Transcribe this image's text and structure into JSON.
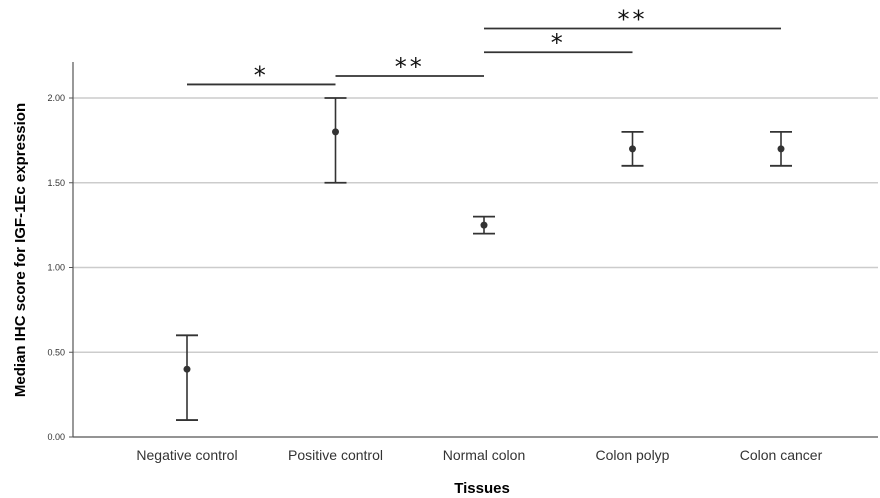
{
  "chart_data": {
    "type": "errorbar",
    "xlabel": "Tissues",
    "ylabel": "Median IHC score for IGF-1Ec expression",
    "ylim": [
      0,
      2.2
    ],
    "yticks": [
      0.0,
      0.5,
      1.0,
      1.5,
      2.0
    ],
    "ytick_labels": [
      "0.00",
      "0.50",
      "1.00",
      "1.50",
      "2.00"
    ],
    "grid": true,
    "categories": [
      "Negative control",
      "Positive control",
      "Normal colon",
      "Colon polyp",
      "Colon cancer"
    ],
    "points": [
      {
        "category": "Negative control",
        "median": 0.4,
        "lower": 0.1,
        "upper": 0.6
      },
      {
        "category": "Positive control",
        "median": 1.8,
        "lower": 1.5,
        "upper": 2.0
      },
      {
        "category": "Normal colon",
        "median": 1.25,
        "lower": 1.2,
        "upper": 1.3
      },
      {
        "category": "Colon polyp",
        "median": 1.7,
        "lower": 1.6,
        "upper": 1.8
      },
      {
        "category": "Colon cancer",
        "median": 1.7,
        "lower": 1.6,
        "upper": 1.8
      }
    ],
    "significance": [
      {
        "from": "Negative control",
        "to": "Positive control",
        "label": "*",
        "y": 2.08
      },
      {
        "from": "Positive control",
        "to": "Normal colon",
        "label": "**",
        "y": 2.13
      },
      {
        "from": "Normal colon",
        "to": "Colon polyp",
        "label": "*",
        "y": 2.27
      },
      {
        "from": "Normal colon",
        "to": "Colon cancer",
        "label": "**",
        "y": 2.41
      }
    ],
    "colors": {
      "marks": "#333333",
      "grid": "#cccccc",
      "axis": "#555555"
    }
  }
}
